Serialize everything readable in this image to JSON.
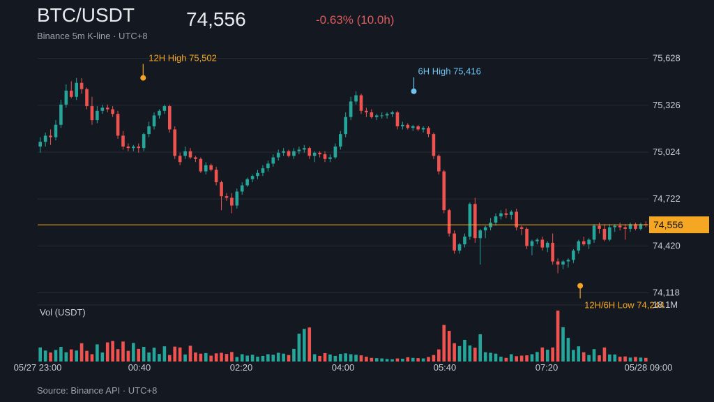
{
  "header": {
    "symbol": "BTC/USDT",
    "last_price": "74,556",
    "change": "-0.63% (10.0h)",
    "subtitle": "Binance 5m K-line · UTC+8"
  },
  "footer": {
    "source": "Source: Binance API · UTC+8"
  },
  "colors": {
    "background": "#141821",
    "up": "#26a69a",
    "down": "#ef5350",
    "accent": "#f5a623",
    "high6h": "#6ec3f0",
    "grid": "#262b35",
    "text": "#c9cdd4",
    "muted": "#9aa1ab"
  },
  "chart_data": {
    "type": "candlestick",
    "interval": "5m",
    "price_ticks": [
      74118,
      74420,
      74722,
      75024,
      75326,
      75628
    ],
    "price_tick_labels": [
      "74,118",
      "74,420",
      "74,722",
      "75,024",
      "75,326",
      "75,628"
    ],
    "price_range": [
      74080,
      75680
    ],
    "last_price": 74556,
    "last_price_label": "74,556",
    "x_tick_labels": [
      "05/27 23:00",
      "00:40",
      "02:20",
      "04:00",
      "05:40",
      "07:20",
      "05/28 09:00"
    ],
    "x_tick_minutes": [
      0,
      100,
      200,
      300,
      400,
      500,
      600
    ],
    "annotations": [
      {
        "label": "12H High 75,502",
        "minute": 105,
        "price": 75502
      },
      {
        "label": "6H High 75,416",
        "minute": 375,
        "price": 75416
      },
      {
        "label": "12H/6H Low 74,244",
        "minute": 535,
        "price": 74244
      }
    ],
    "volume": {
      "label": "Vol (USDT)",
      "max_label": "18.1M",
      "max": 18.1
    },
    "candles": [
      [
        75060,
        75120,
        75020,
        75090,
        5.0
      ],
      [
        75090,
        75150,
        75060,
        75130,
        3.9
      ],
      [
        75130,
        75170,
        75070,
        75120,
        3.2
      ],
      [
        75120,
        75230,
        75100,
        75200,
        4.1
      ],
      [
        75200,
        75360,
        75180,
        75330,
        5.2
      ],
      [
        75330,
        75460,
        75310,
        75420,
        3.3
      ],
      [
        75420,
        75480,
        75370,
        75380,
        4.3
      ],
      [
        75380,
        75502,
        75360,
        75470,
        3.9
      ],
      [
        75470,
        75500,
        75400,
        75430,
        6.5
      ],
      [
        75430,
        75440,
        75300,
        75320,
        3.8
      ],
      [
        75320,
        75380,
        75200,
        75230,
        2.6
      ],
      [
        75230,
        75320,
        75210,
        75290,
        6.1
      ],
      [
        75290,
        75330,
        75270,
        75310,
        3.2
      ],
      [
        75310,
        75330,
        75280,
        75300,
        6.8
      ],
      [
        75300,
        75320,
        75250,
        75270,
        7.3
      ],
      [
        75270,
        75290,
        75110,
        75130,
        4.4
      ],
      [
        75130,
        75160,
        75040,
        75060,
        7.1
      ],
      [
        75060,
        75080,
        75030,
        75050,
        3.8
      ],
      [
        75050,
        75070,
        75030,
        75060,
        6.6
      ],
      [
        75060,
        75080,
        75020,
        75050,
        4.5
      ],
      [
        75050,
        75150,
        75030,
        75140,
        5.2
      ],
      [
        75140,
        75220,
        75120,
        75190,
        3.2
      ],
      [
        75190,
        75280,
        75170,
        75260,
        4.9
      ],
      [
        75260,
        75300,
        75240,
        75290,
        2.7
      ],
      [
        75290,
        75330,
        75270,
        75320,
        5.4
      ],
      [
        75320,
        75330,
        75150,
        75170,
        2.3
      ],
      [
        75170,
        75190,
        74980,
        75000,
        5.3
      ],
      [
        75000,
        75020,
        74940,
        74960,
        5.0
      ],
      [
        75000,
        75060,
        74980,
        75030,
        2.5
      ],
      [
        75030,
        75050,
        74980,
        74990,
        5.6
      ],
      [
        74990,
        75000,
        74960,
        74980,
        3.2
      ],
      [
        74980,
        74990,
        74890,
        74900,
        2.8
      ],
      [
        74900,
        74960,
        74880,
        74940,
        3.0
      ],
      [
        74940,
        74950,
        74900,
        74910,
        2.1
      ],
      [
        74910,
        74930,
        74810,
        74830,
        2.9
      ],
      [
        74830,
        74840,
        74650,
        74740,
        3.1
      ],
      [
        74740,
        74760,
        74710,
        74730,
        2.7
      ],
      [
        74730,
        74760,
        74630,
        74680,
        3.4
      ],
      [
        74680,
        74790,
        74660,
        74770,
        1.6
      ],
      [
        74770,
        74830,
        74750,
        74810,
        2.6
      ],
      [
        74810,
        74860,
        74800,
        74850,
        2.1
      ],
      [
        74850,
        74880,
        74830,
        74870,
        2.4
      ],
      [
        74870,
        74910,
        74850,
        74890,
        1.7
      ],
      [
        74890,
        74940,
        74870,
        74920,
        2.0
      ],
      [
        74920,
        74970,
        74900,
        74950,
        2.6
      ],
      [
        74950,
        75010,
        74930,
        74990,
        2.4
      ],
      [
        74990,
        75040,
        74970,
        75020,
        3.1
      ],
      [
        75020,
        75050,
        75000,
        75030,
        2.8
      ],
      [
        75030,
        75040,
        74990,
        75000,
        2.3
      ],
      [
        75000,
        75050,
        74980,
        75030,
        4.5
      ],
      [
        75030,
        75060,
        75010,
        75040,
        9.9
      ],
      [
        75040,
        75070,
        75020,
        75050,
        11.6
      ],
      [
        75050,
        75060,
        74980,
        75000,
        12.1
      ],
      [
        75000,
        75030,
        74960,
        75020,
        2.6
      ],
      [
        75020,
        75030,
        74990,
        75010,
        2.0
      ],
      [
        75010,
        75030,
        74960,
        74980,
        3.0
      ],
      [
        74980,
        75010,
        74960,
        74990,
        2.5
      ],
      [
        74990,
        75080,
        74980,
        75060,
        2.0
      ],
      [
        75060,
        75160,
        75040,
        75140,
        2.7
      ],
      [
        75140,
        75280,
        75120,
        75250,
        2.9
      ],
      [
        75250,
        75380,
        75230,
        75350,
        2.6
      ],
      [
        75350,
        75416,
        75330,
        75390,
        2.4
      ],
      [
        75390,
        75400,
        75270,
        75290,
        2.2
      ],
      [
        75290,
        75310,
        75250,
        75280,
        1.7
      ],
      [
        75280,
        75300,
        75240,
        75250,
        1.3
      ],
      [
        75250,
        75270,
        75230,
        75260,
        1.2
      ],
      [
        75260,
        75280,
        75240,
        75260,
        1.1
      ],
      [
        75260,
        75280,
        75240,
        75270,
        0.9
      ],
      [
        75270,
        75290,
        75250,
        75280,
        0.8
      ],
      [
        75280,
        75290,
        75170,
        75190,
        1.1
      ],
      [
        75190,
        75220,
        75170,
        75200,
        1.0
      ],
      [
        75200,
        75210,
        75170,
        75180,
        1.5
      ],
      [
        75180,
        75200,
        75160,
        75190,
        1.3
      ],
      [
        75190,
        75200,
        75160,
        75170,
        1.2
      ],
      [
        75170,
        75190,
        75150,
        75180,
        1.1
      ],
      [
        75180,
        75190,
        75120,
        75140,
        1.6
      ],
      [
        75140,
        75150,
        74980,
        75000,
        2.3
      ],
      [
        75000,
        75010,
        74880,
        74900,
        4.3
      ],
      [
        74900,
        74910,
        74630,
        74650,
        13.0
      ],
      [
        74650,
        74660,
        74480,
        74500,
        10.9
      ],
      [
        74500,
        74520,
        74370,
        74390,
        6.5
      ],
      [
        74390,
        74440,
        74370,
        74430,
        5.5
      ],
      [
        74430,
        74500,
        74410,
        74480,
        7.7
      ],
      [
        74480,
        74700,
        74460,
        74690,
        5.7
      ],
      [
        74690,
        74730,
        74440,
        74470,
        4.9
      ],
      [
        74470,
        74530,
        74300,
        74520,
        9.7
      ],
      [
        74520,
        74550,
        74470,
        74540,
        3.3
      ],
      [
        74540,
        74600,
        74520,
        74570,
        3.1
      ],
      [
        74570,
        74630,
        74550,
        74610,
        2.8
      ],
      [
        74610,
        74650,
        74590,
        74630,
        1.7
      ],
      [
        74630,
        74660,
        74600,
        74620,
        1.3
      ],
      [
        74620,
        74650,
        74590,
        74640,
        2.6
      ],
      [
        74640,
        74660,
        74520,
        74540,
        1.9
      ],
      [
        74540,
        74550,
        74490,
        74530,
        2.1
      ],
      [
        74530,
        74540,
        74400,
        74420,
        2.2
      ],
      [
        74420,
        74460,
        74360,
        74450,
        2.6
      ],
      [
        74450,
        74470,
        74430,
        74460,
        3.4
      ],
      [
        74460,
        74480,
        74390,
        74410,
        5.0
      ],
      [
        74410,
        74450,
        74380,
        74440,
        4.2
      ],
      [
        74440,
        74500,
        74300,
        74320,
        5.0
      ],
      [
        74320,
        74340,
        74244,
        74300,
        18.1
      ],
      [
        74300,
        74330,
        74270,
        74320,
        12.2
      ],
      [
        74320,
        74340,
        74280,
        74330,
        8.4
      ],
      [
        74330,
        74400,
        74310,
        74390,
        4.1
      ],
      [
        74390,
        74460,
        74370,
        74450,
        5.4
      ],
      [
        74450,
        74480,
        74420,
        74430,
        3.3
      ],
      [
        74430,
        74470,
        74400,
        74460,
        2.3
      ],
      [
        74460,
        74560,
        74440,
        74550,
        4.4
      ],
      [
        74550,
        74570,
        74500,
        74530,
        2.2
      ],
      [
        74530,
        74560,
        74450,
        74460,
        5.0
      ],
      [
        74460,
        74560,
        74450,
        74540,
        2.5
      ],
      [
        74540,
        74560,
        74510,
        74550,
        2.5
      ],
      [
        74550,
        74570,
        74520,
        74540,
        1.7
      ],
      [
        74540,
        74560,
        74460,
        74530,
        1.8
      ],
      [
        74530,
        74570,
        74510,
        74560,
        1.4
      ],
      [
        74560,
        74570,
        74520,
        74530,
        1.6
      ],
      [
        74530,
        74570,
        74520,
        74560,
        1.4
      ],
      [
        74560,
        74580,
        74540,
        74556,
        1.3
      ]
    ]
  }
}
